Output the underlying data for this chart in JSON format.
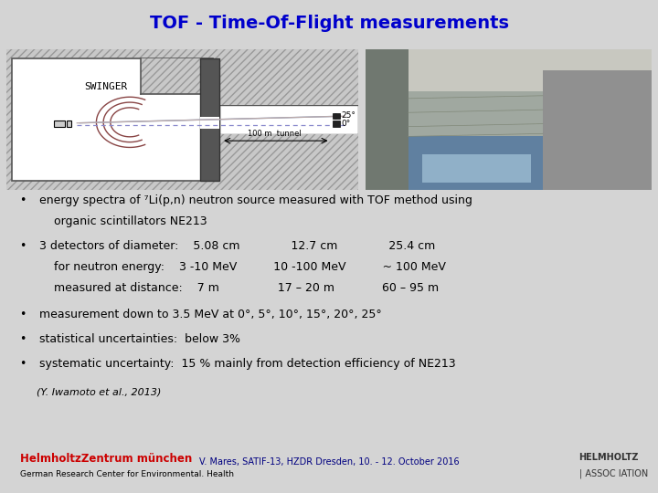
{
  "title": "TOF - Time-Of-Flight measurements",
  "title_color": "#0000CC",
  "title_fontsize": 14,
  "bg_color": "#D4D4D4",
  "white": "#FFFFFF",
  "bullet_points_line1": "energy spectra of ⁷Li(p,n) neutron source measured with TOF method using",
  "bullet_points_line1b": "    organic scintillators NE213",
  "bullet_points_line2": "3 detectors of diameter:    5.08 cm              12.7 cm              25.4 cm",
  "bullet_points_line2b": "    for neutron energy:    3 -10 MeV          10 -100 MeV          ~ 100 MeV",
  "bullet_points_line2c": "    measured at distance:    7 m                17 – 20 m             60 – 95 m",
  "bullet_points_line3": "measurement down to 3.5 MeV at 0°, 5°, 10°, 15°, 20°, 25°",
  "bullet_points_line4": "statistical uncertainties:  below 3%",
  "bullet_points_line5": "systematic uncertainty:  15 % mainly from detection efficiency of NE213",
  "citation": "(Y. Iwamoto et al., 2013)",
  "footer_left1": "HelmholtzZentrum münchen",
  "footer_left2": "German Research Center for Environmental. Health",
  "footer_center": "V. Mares, SATIF-13, HZDR Dresden, 10. - 12. October 2016",
  "footer_right1": "HELMHOLTZ",
  "footer_right2": "| ASSOC IATION",
  "footer_left_color": "#CC0000",
  "footer_center_color": "#000080",
  "text_color": "#000000",
  "bullet_fontsize": 9,
  "footer_fontsize": 7,
  "diagram_label_swinger": "SWINGER",
  "diagram_label_tunnel": "100 m  tunnel",
  "diagram_label_25": "25°",
  "diagram_label_0": "0°"
}
